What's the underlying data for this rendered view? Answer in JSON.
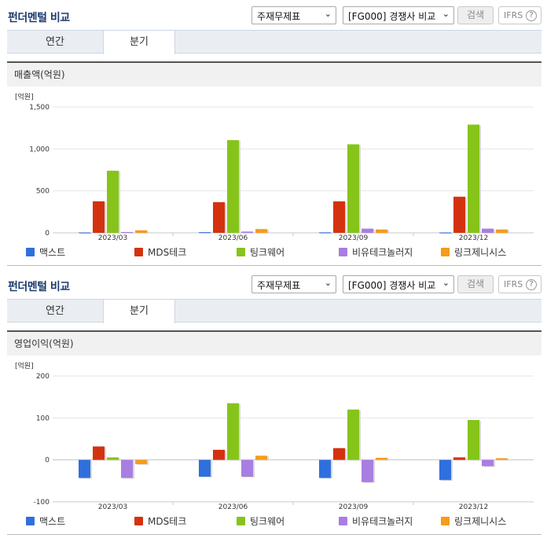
{
  "header": {
    "title": "펀더멘털 비교",
    "select_report": "주재무제표",
    "select_compare": "[FG000] 경쟁사 비교",
    "search_button": "검색",
    "ifrs_label": "IFRS",
    "help_glyph": "?"
  },
  "tabs": [
    {
      "label": "연간"
    },
    {
      "label": "분기"
    }
  ],
  "colors": {
    "맥스트": "#2f6fde",
    "MDS테크": "#d4320e",
    "팅크웨어": "#86c41a",
    "비유테크놀러지": "#a97ee3",
    "링크제니시스": "#f59c1a"
  },
  "panels": [
    {
      "section_title": "매출액(억원)",
      "chart_data": {
        "type": "bar",
        "unit_label": "[억원]",
        "categories": [
          "2023/03",
          "2023/06",
          "2023/09",
          "2023/12"
        ],
        "ylim": [
          0,
          1500
        ],
        "yticks": [
          0,
          500,
          1000,
          1500
        ],
        "ytick_labels": [
          "0",
          "500",
          "1,000",
          "1,500"
        ],
        "grid": true,
        "legend_position": "bottom",
        "series": [
          {
            "name": "맥스트",
            "values": [
              5,
              8,
              6,
              5
            ]
          },
          {
            "name": "MDS테크",
            "values": [
              375,
              365,
              375,
              430
            ]
          },
          {
            "name": "팅크웨어",
            "values": [
              740,
              1105,
              1055,
              1290
            ]
          },
          {
            "name": "비유테크놀러지",
            "values": [
              10,
              15,
              50,
              50
            ]
          },
          {
            "name": "링크제니시스",
            "values": [
              30,
              45,
              40,
              40
            ]
          }
        ]
      }
    },
    {
      "section_title": "영업이익(억원)",
      "chart_data": {
        "type": "bar",
        "unit_label": "[억원]",
        "categories": [
          "2023/03",
          "2023/06",
          "2023/09",
          "2023/12"
        ],
        "ylim": [
          -100,
          200
        ],
        "yticks": [
          -100,
          0,
          100,
          200
        ],
        "ytick_labels": [
          "-100",
          "0",
          "100",
          "200"
        ],
        "grid": true,
        "legend_position": "bottom",
        "series": [
          {
            "name": "맥스트",
            "values": [
              -43,
              -40,
              -43,
              -48
            ]
          },
          {
            "name": "MDS테크",
            "values": [
              32,
              24,
              28,
              6
            ]
          },
          {
            "name": "팅크웨어",
            "values": [
              6,
              135,
              120,
              95
            ]
          },
          {
            "name": "비유테크놀러지",
            "values": [
              -43,
              -40,
              -53,
              -15
            ]
          },
          {
            "name": "링크제니시스",
            "values": [
              -10,
              10,
              5,
              4
            ]
          }
        ]
      }
    }
  ]
}
